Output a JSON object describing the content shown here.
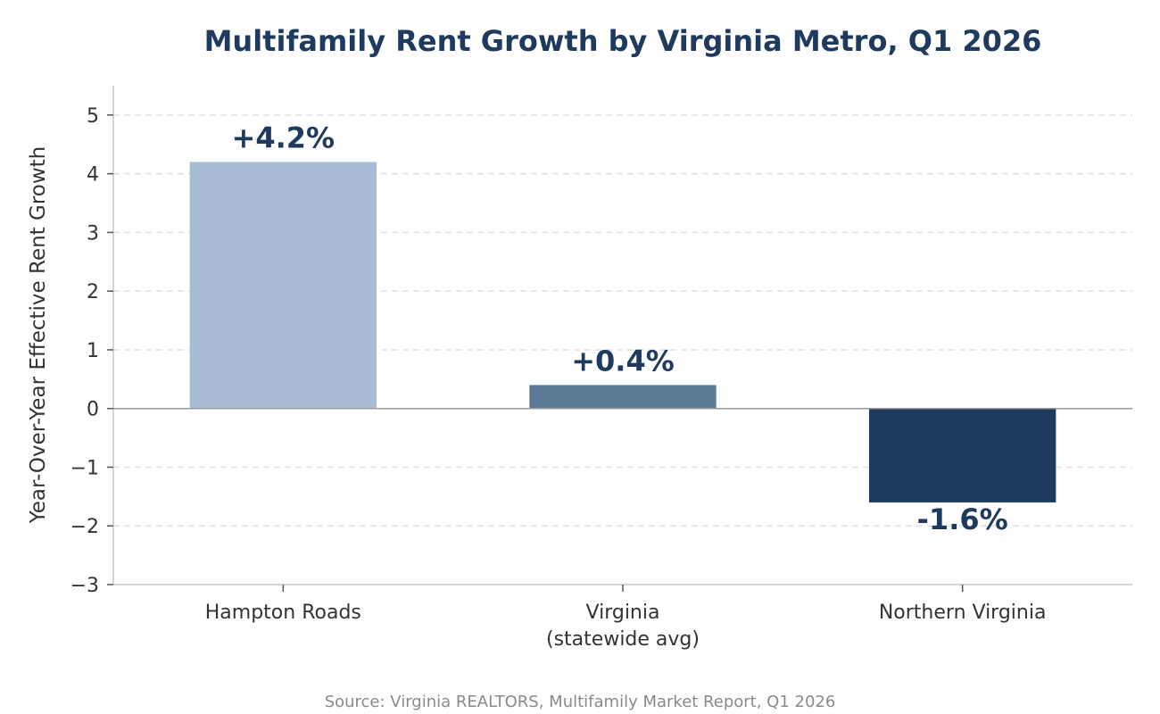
{
  "chart_data": {
    "type": "bar",
    "title": "Multifamily Rent Growth by Virginia Metro, Q1 2026",
    "xlabel": "",
    "ylabel": "Year-Over-Year Effective Rent Growth",
    "ylim": [
      -3,
      5.5
    ],
    "yticks": [
      -3,
      -2,
      -1,
      0,
      1,
      2,
      3,
      4,
      5
    ],
    "ytick_labels": [
      "−3",
      "−2",
      "−1",
      "0",
      "1",
      "2",
      "3",
      "4",
      "5"
    ],
    "categories": [
      [
        "Hampton Roads"
      ],
      [
        "Virginia",
        "(statewide avg)"
      ],
      [
        "Northern Virginia"
      ]
    ],
    "values": [
      4.2,
      0.4,
      -1.6
    ],
    "data_labels": [
      "+4.2%",
      "+0.4%",
      "-1.6%"
    ],
    "colors": [
      "#a8bdd3",
      "#5b7a96",
      "#1f3a5f"
    ],
    "grid": true,
    "source": "Source: Virginia REALTORS, Multifamily Market Report, Q1 2026"
  }
}
